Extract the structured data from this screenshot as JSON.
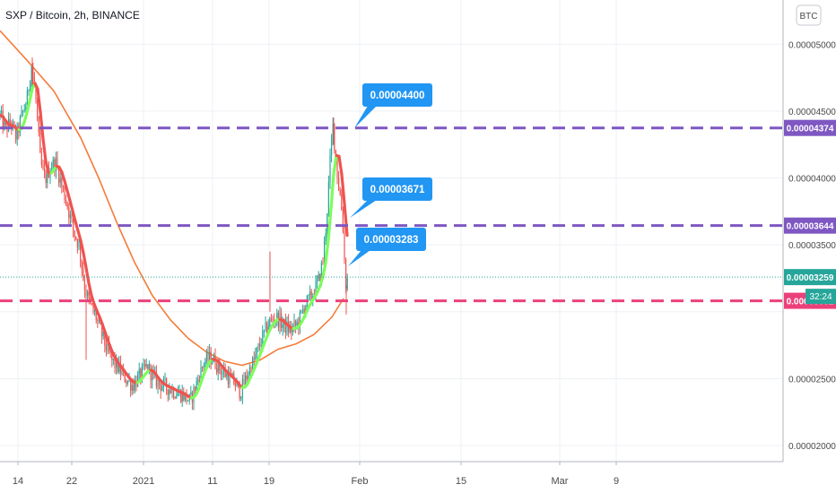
{
  "title": "SXP / Bitcoin, 2h, BINANCE",
  "currency_button": "BTC",
  "countdown": "32:24",
  "colors": {
    "grid": "#eef1f5",
    "axis_text": "#4a4a4a",
    "candle_up": "#26a69a",
    "candle_dn": "#ef5350",
    "ma_fast_dn": "#ef5350",
    "ma_fast_up": "#7cfc5a",
    "ma_slow": "#f57c3a",
    "level_purple": "#7e57c2",
    "level_pink": "#ec407a",
    "current_price": "#26a69a",
    "callout": "#2196f3"
  },
  "chart_data": {
    "type": "candlestick",
    "symbol": "SXP / Bitcoin",
    "interval": "2h",
    "exchange": "BINANCE",
    "x_ticks": [
      "14",
      "22",
      "2021",
      "11",
      "19",
      "Feb",
      "15",
      "Mar",
      "9"
    ],
    "y_ticks": [
      "0.00005000",
      "0.00004500",
      "0.00004000",
      "0.00003500",
      "0.00002500",
      "0.00002000"
    ],
    "y_range": [
      1.88e-05,
      5.33e-05
    ],
    "price_path": [
      [
        0,
        4.47e-05
      ],
      [
        6,
        4.36e-05
      ],
      [
        12,
        4.42e-05
      ],
      [
        18,
        4.3e-05
      ],
      [
        24,
        4.46e-05
      ],
      [
        30,
        4.58e-05
      ],
      [
        35,
        4.85e-05
      ],
      [
        40,
        4.58e-05
      ],
      [
        45,
        4.12e-05
      ],
      [
        50,
        3.98e-05
      ],
      [
        56,
        4.08e-05
      ],
      [
        62,
        4.12e-05
      ],
      [
        68,
        3.96e-05
      ],
      [
        75,
        3.8e-05
      ],
      [
        82,
        3.6e-05
      ],
      [
        88,
        3.5e-05
      ],
      [
        94,
        3.2e-05
      ],
      [
        100,
        3.05e-05
      ],
      [
        106,
        2.98e-05
      ],
      [
        112,
        2.86e-05
      ],
      [
        118,
        2.74e-05
      ],
      [
        125,
        2.63e-05
      ],
      [
        132,
        2.58e-05
      ],
      [
        140,
        2.5e-05
      ],
      [
        148,
        2.45e-05
      ],
      [
        156,
        2.52e-05
      ],
      [
        164,
        2.59e-05
      ],
      [
        172,
        2.5e-05
      ],
      [
        180,
        2.45e-05
      ],
      [
        188,
        2.43e-05
      ],
      [
        196,
        2.4e-05
      ],
      [
        204,
        2.38e-05
      ],
      [
        212,
        2.33e-05
      ],
      [
        220,
        2.48e-05
      ],
      [
        228,
        2.63e-05
      ],
      [
        236,
        2.66e-05
      ],
      [
        244,
        2.58e-05
      ],
      [
        252,
        2.53e-05
      ],
      [
        260,
        2.48e-05
      ],
      [
        268,
        2.4e-05
      ],
      [
        276,
        2.53e-05
      ],
      [
        284,
        2.65e-05
      ],
      [
        292,
        2.8e-05
      ],
      [
        300,
        2.92e-05
      ],
      [
        308,
        2.96e-05
      ],
      [
        316,
        2.9e-05
      ],
      [
        324,
        2.86e-05
      ],
      [
        332,
        2.91e-05
      ],
      [
        340,
        3.05e-05
      ],
      [
        348,
        3.12e-05
      ],
      [
        355,
        3.23e-05
      ],
      [
        360,
        3.38e-05
      ],
      [
        364,
        3.68e-05
      ],
      [
        368,
        4.12e-05
      ],
      [
        371,
        4.4e-05
      ],
      [
        374,
        4.18e-05
      ],
      [
        377,
        3.96e-05
      ],
      [
        380,
        3.84e-05
      ],
      [
        383,
        3.58e-05
      ],
      [
        385,
        3.2e-05
      ],
      [
        388,
        3.26e-05
      ]
    ],
    "indicators": [
      {
        "type": "moving_average_fast",
        "coloring": "red when falling, green when rising"
      },
      {
        "type": "moving_average_slow",
        "path": [
          [
            0,
            5.1e-05
          ],
          [
            30,
            4.88e-05
          ],
          [
            60,
            4.65e-05
          ],
          [
            90,
            4.3e-05
          ],
          [
            110,
            4e-05
          ],
          [
            130,
            3.67e-05
          ],
          [
            150,
            3.37e-05
          ],
          [
            170,
            3.12e-05
          ],
          [
            190,
            2.94e-05
          ],
          [
            210,
            2.8e-05
          ],
          [
            230,
            2.7e-05
          ],
          [
            250,
            2.63e-05
          ],
          [
            270,
            2.6e-05
          ],
          [
            290,
            2.64e-05
          ],
          [
            310,
            2.72e-05
          ],
          [
            330,
            2.76e-05
          ],
          [
            350,
            2.83e-05
          ],
          [
            370,
            2.96e-05
          ],
          [
            383,
            3.1e-05
          ]
        ]
      }
    ],
    "price_levels": [
      {
        "label": "0.00004374",
        "value": 4.374e-05,
        "style": "purple-dashed"
      },
      {
        "label": "0.00003644",
        "value": 3.644e-05,
        "style": "purple-dashed"
      },
      {
        "label": "0.00003082",
        "value": 3.082e-05,
        "style": "pink-dashed"
      }
    ],
    "current_price": {
      "label": "0.00003259",
      "value": 3.259e-05
    },
    "callouts": [
      {
        "text": "0.00004400",
        "value": 4.4e-05
      },
      {
        "text": "0.00003671",
        "value": 3.671e-05
      },
      {
        "text": "0.00003283",
        "value": 3.283e-05
      }
    ]
  }
}
